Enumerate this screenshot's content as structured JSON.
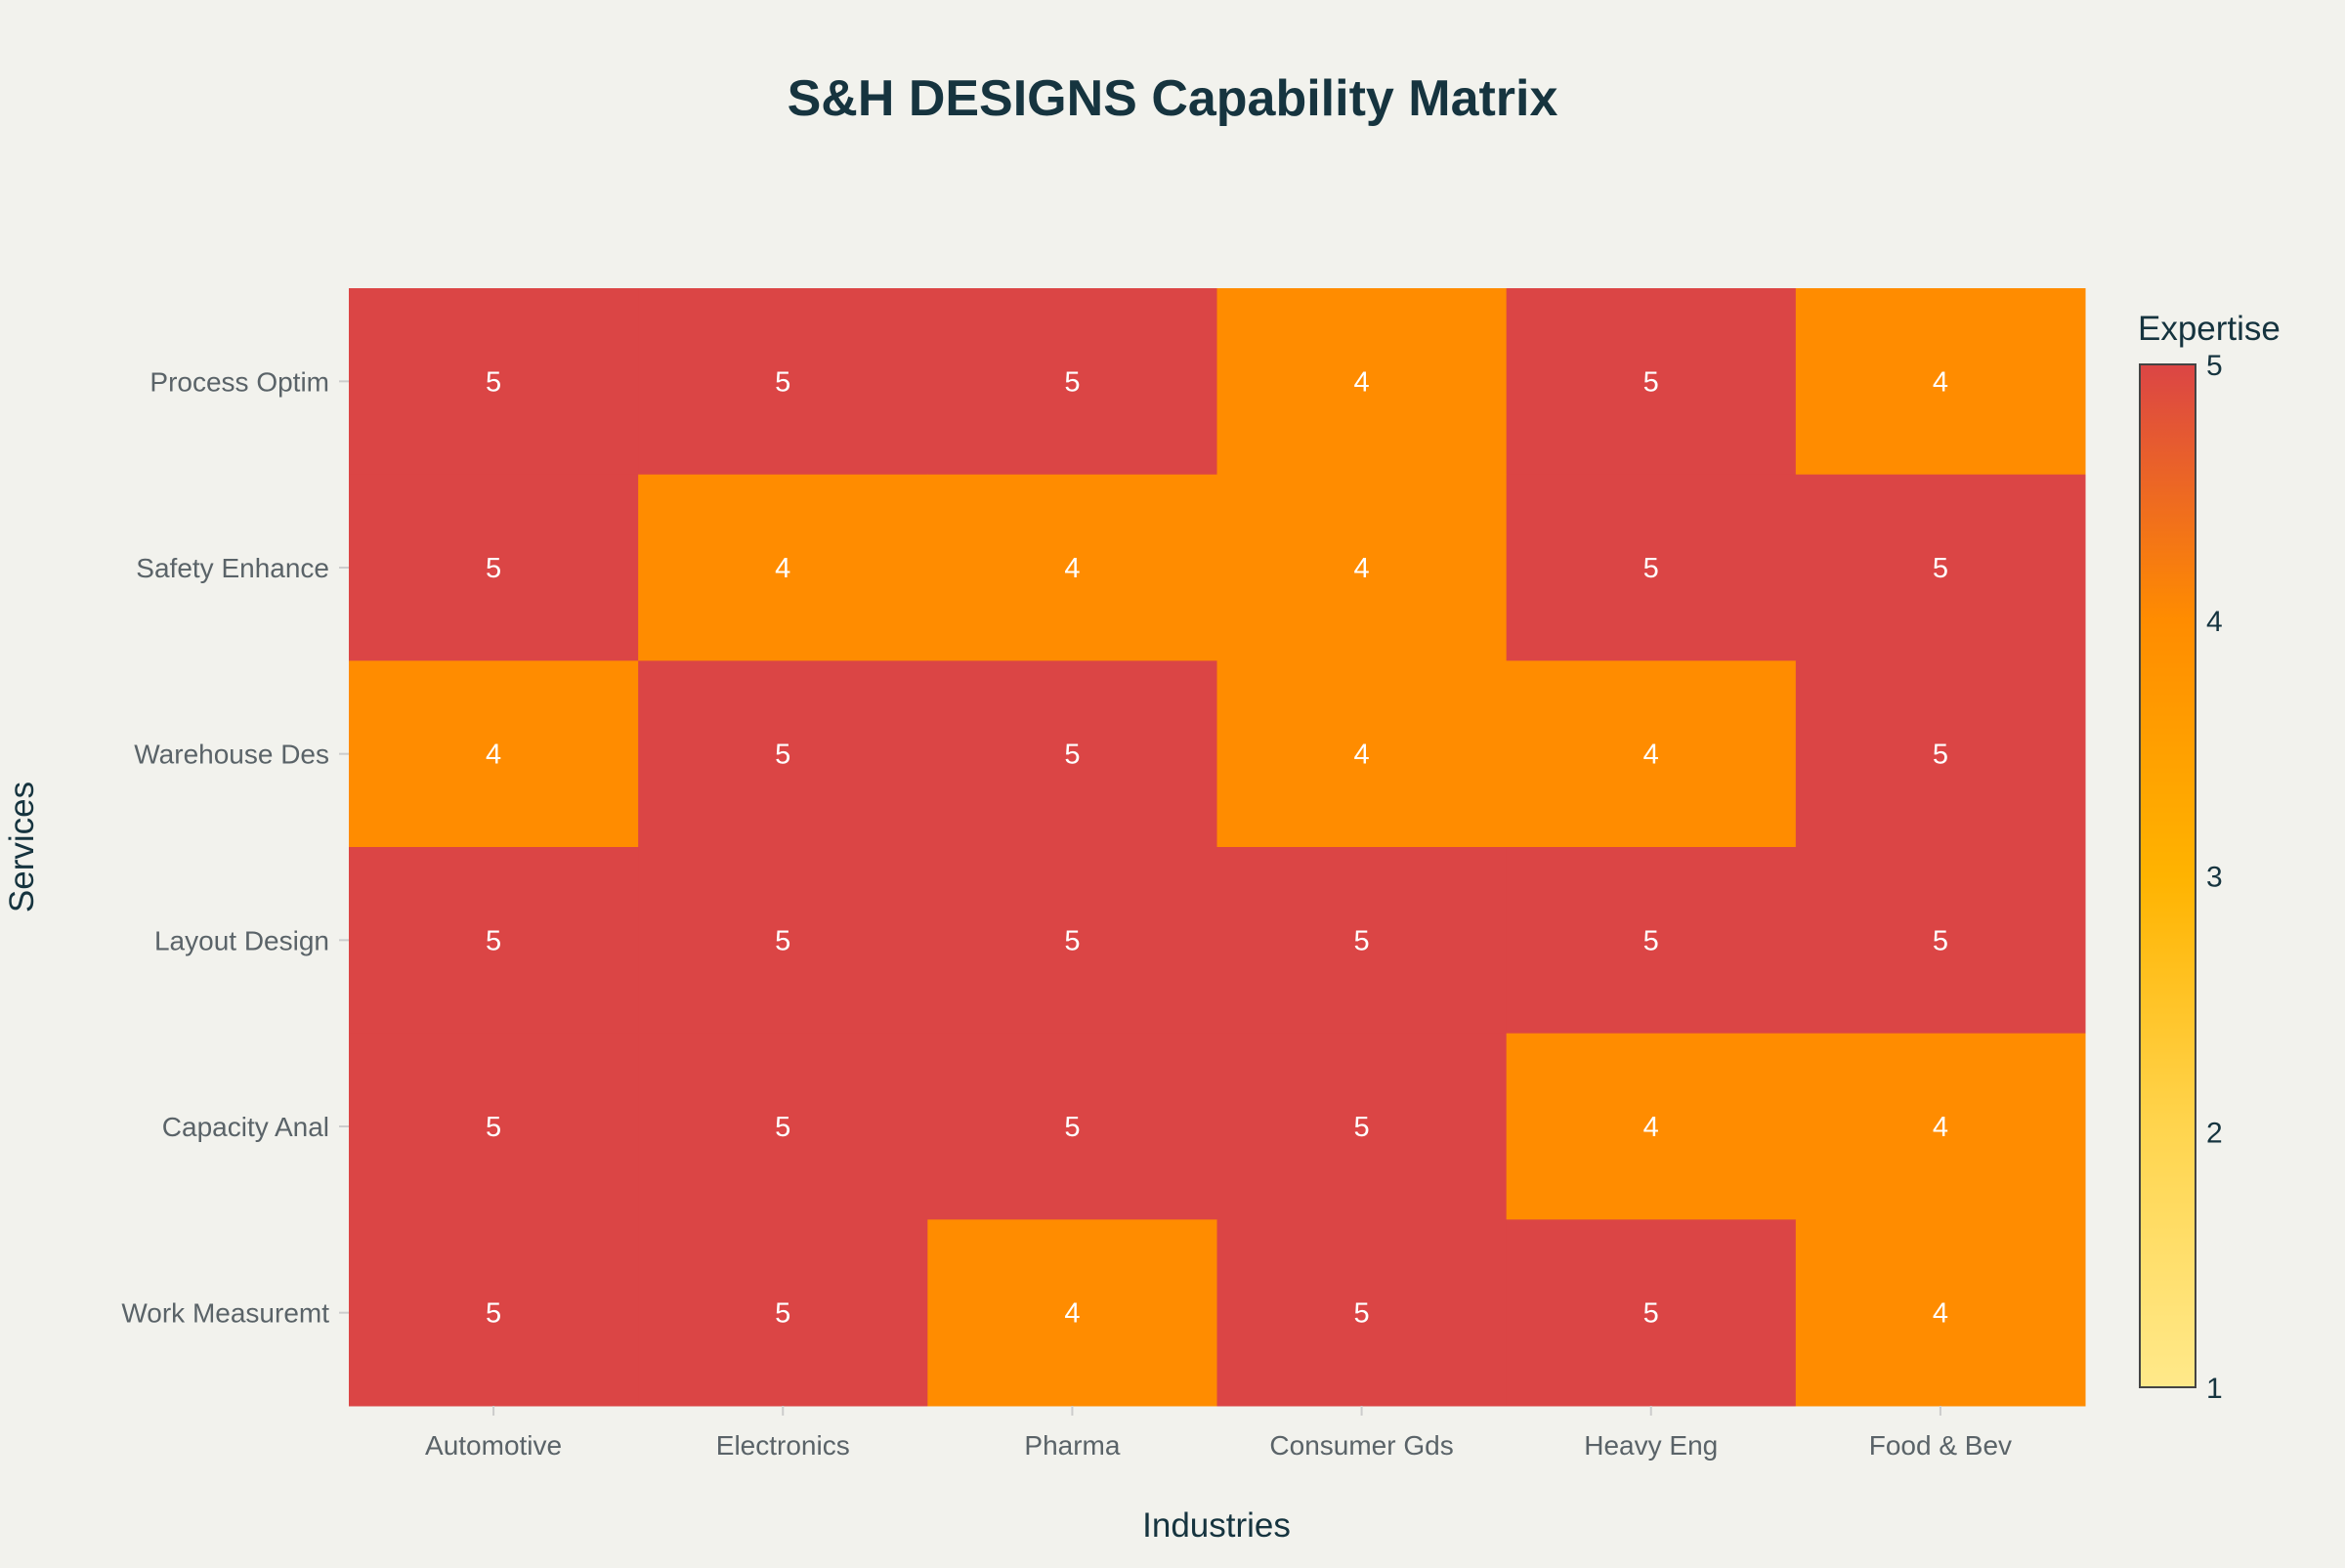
{
  "chart_data": {
    "type": "heatmap",
    "title": "S&H DESIGNS Capability Matrix",
    "xlabel": "Industries",
    "ylabel": "Services",
    "x_categories": [
      "Automotive",
      "Electronics",
      "Pharma",
      "Consumer Gds",
      "Heavy Eng",
      "Food & Bev"
    ],
    "y_categories": [
      "Process Optim",
      "Safety Enhance",
      "Warehouse Des",
      "Layout Design",
      "Capacity Anal",
      "Work Measuremt"
    ],
    "values": [
      [
        5,
        5,
        5,
        4,
        5,
        4
      ],
      [
        5,
        4,
        4,
        4,
        5,
        5
      ],
      [
        4,
        5,
        5,
        4,
        4,
        5
      ],
      [
        5,
        5,
        5,
        5,
        5,
        5
      ],
      [
        5,
        5,
        5,
        5,
        4,
        4
      ],
      [
        5,
        5,
        4,
        5,
        5,
        4
      ]
    ],
    "colorbar": {
      "title": "Expertise",
      "range": [
        1,
        5
      ],
      "ticks": [
        "1",
        "2",
        "3",
        "4",
        "5"
      ],
      "colorscale": [
        [
          1,
          "#FFE98A"
        ],
        [
          2,
          "#FFD54F"
        ],
        [
          3,
          "#FFB300"
        ],
        [
          4,
          "#FF8C00"
        ],
        [
          5,
          "#DB4545"
        ]
      ]
    },
    "grid": false
  }
}
